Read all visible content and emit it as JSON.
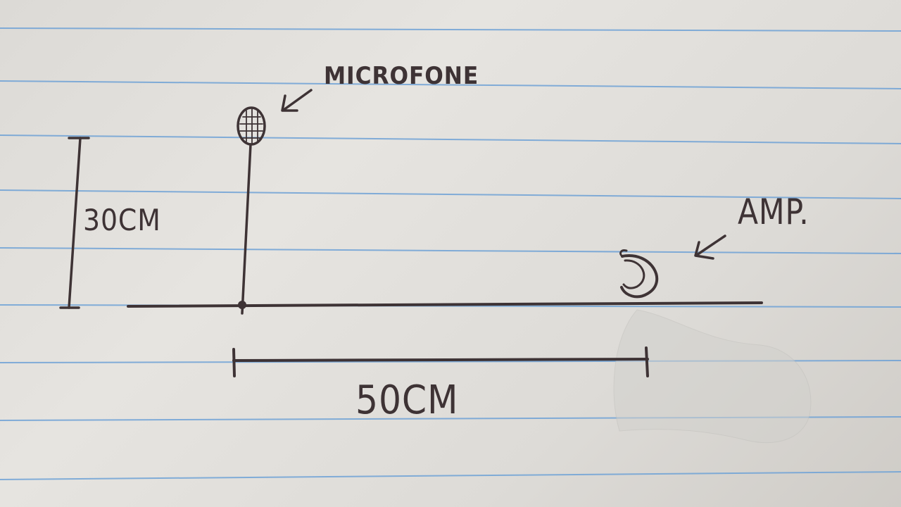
{
  "labels": {
    "microphone": "MICROFONE",
    "amplifier": "AMP.",
    "height": "30CM",
    "distance": "50CM"
  },
  "colors": {
    "ink": "#3e3335",
    "ruled_line": "#6fa2d6",
    "paper": "#e3e1dd"
  },
  "icons": {
    "microphone": "microphone-icon",
    "amplifier": "amplifier-icon",
    "pointer": "arrow-icon"
  }
}
